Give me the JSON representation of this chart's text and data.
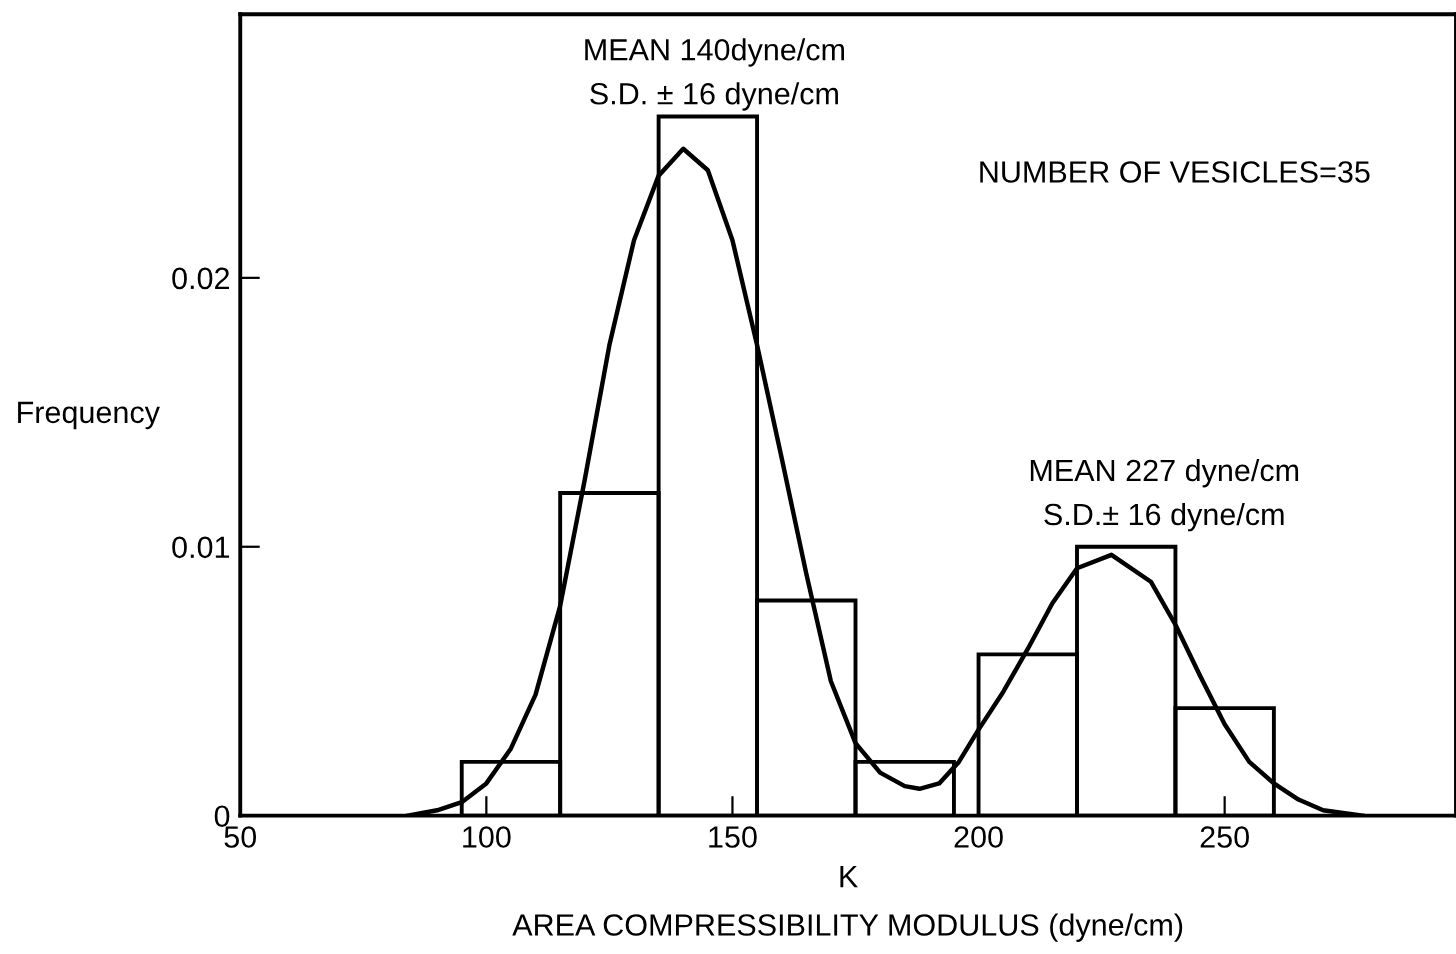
{
  "chart_data": {
    "type": "histogram",
    "xlabel": "K\nAREA COMPRESSIBILITY MODULUS (dyne/cm)",
    "ylabel": "Frequency",
    "bins": [
      95,
      115,
      135,
      155,
      175,
      195,
      200,
      220,
      240,
      260
    ],
    "values": [
      0.002,
      0.012,
      0.026,
      0.008,
      0.002,
      null,
      0.006,
      0.01,
      0.004
    ],
    "color": "#000000",
    "series": [
      {
        "type": "line",
        "color": "#000000",
        "x": [
          84,
          90,
          95,
          100,
          105,
          110,
          115,
          120,
          125,
          130,
          135,
          140,
          145,
          150,
          155,
          160,
          165,
          170,
          175,
          180,
          185,
          188,
          192,
          196,
          200,
          205,
          210,
          215,
          220,
          227,
          235,
          240,
          245,
          250,
          255,
          260,
          265,
          270,
          278
        ],
        "values": [
          0,
          0.0002,
          0.0005,
          0.0012,
          0.0025,
          0.0045,
          0.0078,
          0.0125,
          0.0175,
          0.0214,
          0.0238,
          0.0248,
          0.024,
          0.0214,
          0.0175,
          0.0133,
          0.009,
          0.005,
          0.0027,
          0.0016,
          0.0011,
          0.001,
          0.0012,
          0.002,
          0.0032,
          0.0046,
          0.0062,
          0.0079,
          0.0092,
          0.0097,
          0.0087,
          0.0071,
          0.0052,
          0.0034,
          0.002,
          0.0012,
          0.0006,
          0.0002,
          0
        ]
      }
    ],
    "annotations": [
      "MEAN 140dyne/cm\nS.D. ± 16 dyne/cm",
      "MEAN 227 dyne/cm\nS.D.± 16 dyne/cm",
      "NUMBER OF VESICLES=35"
    ],
    "xlim": [
      50,
      297
    ],
    "ylim": [
      0,
      0.0298
    ],
    "xticks": [
      50,
      100,
      150,
      200,
      250
    ],
    "yticks": [
      0,
      0.01,
      0.02
    ],
    "grid": false,
    "legend": false,
    "marker": "none",
    "line_style": "solid"
  }
}
